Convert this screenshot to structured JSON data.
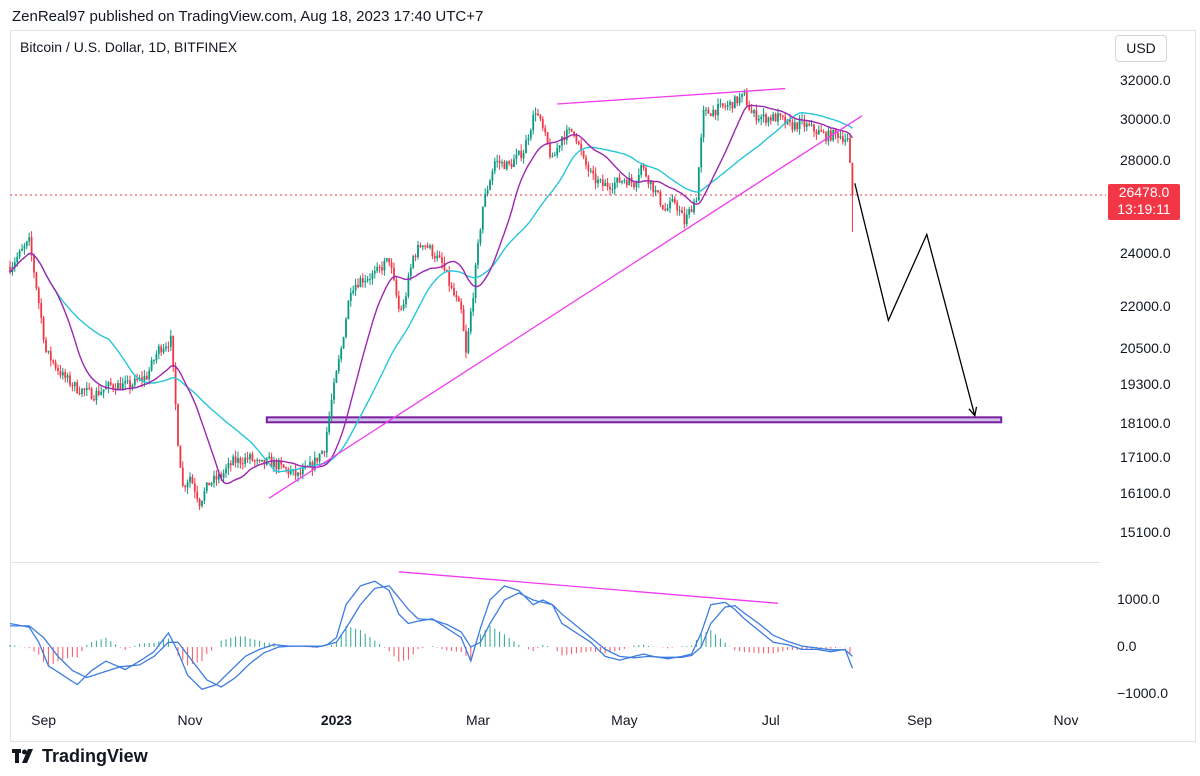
{
  "header": {
    "publish_line": "ZenReal97 published on TradingView.com, Aug 18, 2023 17:40 UTC+7"
  },
  "chart": {
    "symbol_line": "Bitcoin / U.S. Dollar, 1D, BITFINEX",
    "currency_button": "USD",
    "last_price": "26478.0",
    "countdown": "13:19:11",
    "colors": {
      "up": "#089981",
      "down": "#f23645",
      "ma_fast": "#9c27b0",
      "ma_slow": "#26c6da",
      "trendline": "#f03cf0",
      "support_zone": "#7b1fa2",
      "macd": "#3d7ce0",
      "projection": "#000000"
    }
  },
  "footer": {
    "brand": "TradingView"
  },
  "chart_data": [
    {
      "type": "candlestick",
      "title": "Bitcoin / U.S. Dollar, 1D, BITFINEX",
      "y_axis": {
        "scale": "log",
        "ticks": [
          "32000.0",
          "30000.0",
          "28000.0",
          "24000.0",
          "22000.0",
          "20500.0",
          "19300.0",
          "18100.0",
          "17100.0",
          "16100.0",
          "15100.0"
        ],
        "tick_values": [
          32000,
          30000,
          28000,
          24000,
          22000,
          20500,
          19300,
          18100,
          17100,
          16100,
          15100
        ]
      },
      "x_axis": {
        "ticks": [
          "Sep",
          "Nov",
          "2023",
          "Mar",
          "May",
          "Jul",
          "Sep",
          "Nov"
        ],
        "range_days": [
          0,
          465
        ],
        "tick_days": [
          14,
          75,
          136,
          195,
          256,
          317,
          379,
          440
        ]
      },
      "price_path": [
        [
          0,
          23500
        ],
        [
          8,
          24500
        ],
        [
          15,
          20400
        ],
        [
          22,
          19600
        ],
        [
          28,
          19200
        ],
        [
          35,
          19000
        ],
        [
          42,
          19300
        ],
        [
          50,
          19300
        ],
        [
          57,
          19600
        ],
        [
          62,
          20500
        ],
        [
          67,
          20800
        ],
        [
          70,
          17600
        ],
        [
          72,
          16300
        ],
        [
          75,
          16600
        ],
        [
          79,
          15900
        ],
        [
          83,
          16400
        ],
        [
          88,
          16600
        ],
        [
          93,
          17000
        ],
        [
          100,
          17100
        ],
        [
          104,
          16900
        ],
        [
          108,
          17000
        ],
        [
          114,
          16800
        ],
        [
          120,
          16600
        ],
        [
          126,
          16900
        ],
        [
          131,
          17400
        ],
        [
          134,
          18800
        ],
        [
          138,
          20500
        ],
        [
          142,
          22700
        ],
        [
          146,
          23000
        ],
        [
          152,
          23200
        ],
        [
          158,
          23800
        ],
        [
          162,
          21900
        ],
        [
          164,
          22000
        ],
        [
          168,
          23900
        ],
        [
          172,
          24500
        ],
        [
          175,
          24200
        ],
        [
          180,
          23600
        ],
        [
          184,
          22600
        ],
        [
          188,
          21800
        ],
        [
          190,
          20300
        ],
        [
          193,
          22500
        ],
        [
          197,
          26000
        ],
        [
          202,
          28000
        ],
        [
          208,
          27800
        ],
        [
          214,
          28500
        ],
        [
          219,
          30500
        ],
        [
          222,
          29500
        ],
        [
          226,
          28000
        ],
        [
          230,
          29200
        ],
        [
          235,
          29500
        ],
        [
          239,
          28000
        ],
        [
          243,
          27200
        ],
        [
          247,
          26900
        ],
        [
          252,
          27000
        ],
        [
          256,
          27200
        ],
        [
          260,
          27000
        ],
        [
          263,
          27800
        ],
        [
          268,
          26800
        ],
        [
          273,
          25800
        ],
        [
          277,
          26200
        ],
        [
          281,
          25300
        ],
        [
          286,
          26400
        ],
        [
          289,
          30300
        ],
        [
          294,
          30500
        ],
        [
          299,
          30700
        ],
        [
          303,
          31000
        ],
        [
          306,
          31200
        ],
        [
          309,
          30300
        ],
        [
          314,
          30100
        ],
        [
          320,
          30100
        ],
        [
          325,
          29700
        ],
        [
          330,
          29800
        ],
        [
          335,
          29500
        ],
        [
          340,
          29200
        ],
        [
          345,
          29300
        ],
        [
          348,
          29100
        ],
        [
          349,
          29000
        ],
        [
          351,
          26478
        ]
      ],
      "series": [
        {
          "name": "MA fast",
          "color": "#9c27b0"
        },
        {
          "name": "MA slow",
          "color": "#26c6da"
        }
      ],
      "annotations": [
        {
          "type": "trendline",
          "from": [
            108,
            16000
          ],
          "to": [
            355,
            30200
          ]
        },
        {
          "type": "trendline",
          "from": [
            228,
            30800
          ],
          "to": [
            323,
            31600
          ]
        },
        {
          "type": "support_zone",
          "from_day": 107,
          "to_day": 413,
          "low": 18150,
          "high": 18300
        },
        {
          "type": "projection_path",
          "points": [
            [
              352,
              27000
            ],
            [
              366,
              21500
            ],
            [
              382,
              24800
            ],
            [
              402,
              18350
            ]
          ]
        }
      ]
    },
    {
      "type": "macd",
      "y_axis": {
        "ticks": [
          "1000.0",
          "0.0",
          "−1000.0"
        ],
        "tick_values": [
          1000,
          0,
          -1000
        ]
      },
      "macd_line": [
        [
          0,
          500
        ],
        [
          8,
          420
        ],
        [
          12,
          100
        ],
        [
          16,
          -400
        ],
        [
          22,
          -600
        ],
        [
          28,
          -800
        ],
        [
          34,
          -500
        ],
        [
          40,
          -300
        ],
        [
          48,
          -480
        ],
        [
          54,
          -300
        ],
        [
          60,
          -100
        ],
        [
          66,
          300
        ],
        [
          70,
          -100
        ],
        [
          74,
          -600
        ],
        [
          80,
          -900
        ],
        [
          86,
          -800
        ],
        [
          92,
          -500
        ],
        [
          98,
          -200
        ],
        [
          104,
          -50
        ],
        [
          110,
          50
        ],
        [
          116,
          20
        ],
        [
          122,
          20
        ],
        [
          128,
          0
        ],
        [
          132,
          40
        ],
        [
          136,
          200
        ],
        [
          140,
          900
        ],
        [
          146,
          1300
        ],
        [
          152,
          1400
        ],
        [
          158,
          1200
        ],
        [
          162,
          700
        ],
        [
          166,
          500
        ],
        [
          170,
          550
        ],
        [
          176,
          600
        ],
        [
          182,
          400
        ],
        [
          188,
          200
        ],
        [
          192,
          -300
        ],
        [
          196,
          400
        ],
        [
          200,
          1000
        ],
        [
          206,
          1300
        ],
        [
          212,
          1200
        ],
        [
          218,
          900
        ],
        [
          222,
          1000
        ],
        [
          226,
          900
        ],
        [
          230,
          500
        ],
        [
          236,
          300
        ],
        [
          242,
          100
        ],
        [
          248,
          -200
        ],
        [
          254,
          -280
        ],
        [
          260,
          -200
        ],
        [
          264,
          -150
        ],
        [
          268,
          -200
        ],
        [
          274,
          -250
        ],
        [
          280,
          -200
        ],
        [
          284,
          -150
        ],
        [
          288,
          300
        ],
        [
          292,
          900
        ],
        [
          298,
          950
        ],
        [
          302,
          800
        ],
        [
          306,
          600
        ],
        [
          312,
          350
        ],
        [
          318,
          100
        ],
        [
          324,
          50
        ],
        [
          330,
          -50
        ],
        [
          336,
          -50
        ],
        [
          342,
          -100
        ],
        [
          348,
          -50
        ],
        [
          351,
          -450
        ]
      ],
      "signal_line": [
        [
          0,
          450
        ],
        [
          8,
          450
        ],
        [
          14,
          200
        ],
        [
          20,
          -200
        ],
        [
          26,
          -500
        ],
        [
          32,
          -650
        ],
        [
          38,
          -550
        ],
        [
          46,
          -420
        ],
        [
          54,
          -380
        ],
        [
          60,
          -200
        ],
        [
          66,
          100
        ],
        [
          70,
          100
        ],
        [
          76,
          -300
        ],
        [
          82,
          -700
        ],
        [
          88,
          -850
        ],
        [
          94,
          -650
        ],
        [
          100,
          -350
        ],
        [
          106,
          -120
        ],
        [
          112,
          0
        ],
        [
          118,
          20
        ],
        [
          124,
          20
        ],
        [
          130,
          20
        ],
        [
          136,
          100
        ],
        [
          140,
          400
        ],
        [
          146,
          900
        ],
        [
          152,
          1250
        ],
        [
          158,
          1300
        ],
        [
          162,
          1050
        ],
        [
          166,
          800
        ],
        [
          170,
          600
        ],
        [
          176,
          580
        ],
        [
          182,
          480
        ],
        [
          188,
          320
        ],
        [
          192,
          0
        ],
        [
          196,
          100
        ],
        [
          200,
          500
        ],
        [
          206,
          1000
        ],
        [
          212,
          1150
        ],
        [
          218,
          1000
        ],
        [
          222,
          950
        ],
        [
          226,
          900
        ],
        [
          230,
          700
        ],
        [
          236,
          450
        ],
        [
          242,
          200
        ],
        [
          248,
          -50
        ],
        [
          254,
          -200
        ],
        [
          260,
          -230
        ],
        [
          266,
          -200
        ],
        [
          272,
          -220
        ],
        [
          280,
          -220
        ],
        [
          284,
          -180
        ],
        [
          288,
          0
        ],
        [
          292,
          500
        ],
        [
          298,
          850
        ],
        [
          302,
          880
        ],
        [
          306,
          720
        ],
        [
          312,
          500
        ],
        [
          318,
          250
        ],
        [
          324,
          120
        ],
        [
          330,
          20
        ],
        [
          336,
          -20
        ],
        [
          342,
          -60
        ],
        [
          348,
          -60
        ],
        [
          351,
          -200
        ]
      ],
      "annotations": [
        {
          "type": "trendline",
          "from": [
            162,
            1600
          ],
          "to": [
            320,
            930
          ]
        }
      ]
    }
  ]
}
